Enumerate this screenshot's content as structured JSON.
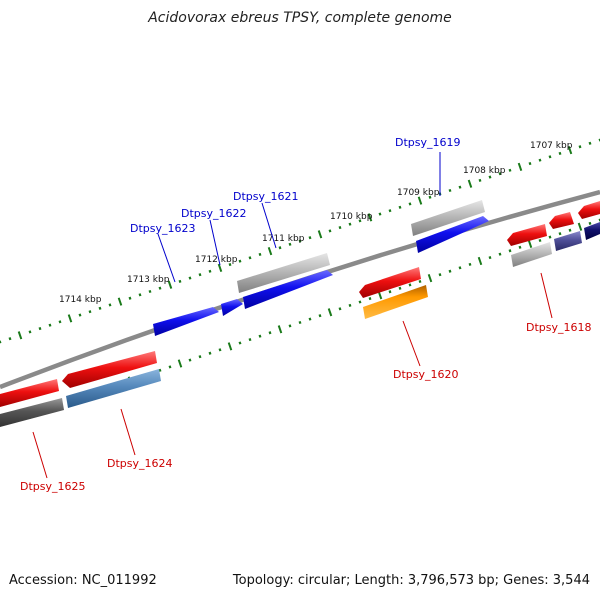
{
  "title": "Acidovorax ebreus TPSY, complete genome",
  "footer": {
    "accession": "Accession: NC_011992",
    "topology": "Topology: circular; Length: 3,796,573 bp; Genes: 3,544"
  },
  "scale": {
    "major_ticks": [
      "1707 kbp",
      "1708 kbp",
      "1709 kbp",
      "1710 kbp",
      "1711 kbp",
      "1712 kbp",
      "1713 kbp",
      "1714 kbp"
    ]
  },
  "genes": {
    "forward": [
      {
        "name": "Dtpsy_1619",
        "color": "#0000cc"
      },
      {
        "name": "Dtpsy_1621",
        "color": "#0000cc"
      },
      {
        "name": "Dtpsy_1622",
        "color": "#0000cc"
      },
      {
        "name": "Dtpsy_1623",
        "color": "#0000cc"
      }
    ],
    "reverse": [
      {
        "name": "Dtpsy_1618",
        "color": "#cc0000"
      },
      {
        "name": "Dtpsy_1620",
        "color": "#cc0000"
      },
      {
        "name": "Dtpsy_1624",
        "color": "#cc0000"
      },
      {
        "name": "Dtpsy_1625",
        "color": "#cc0000"
      }
    ]
  },
  "colors": {
    "blue_gene": "#1111ee",
    "red_gene": "#ee1111",
    "gray_gene": "#b8b8b8",
    "orange_gene": "#ff9900",
    "steel_gene": "#5588bb",
    "dark_gene": "#555555",
    "tick_green": "#1a7a1a",
    "backbone": "#888888"
  }
}
